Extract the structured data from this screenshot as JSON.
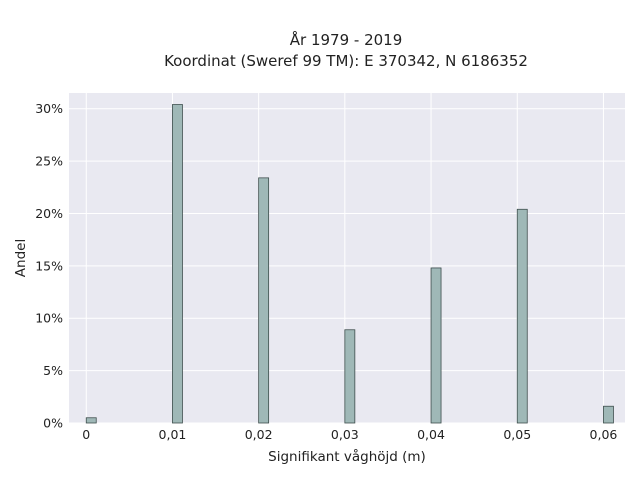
{
  "chart_data": {
    "type": "bar",
    "title_lines": [
      "År 1979 - 2019",
      "Koordinat (Sweref 99 TM): E 370342, N 6186352"
    ],
    "xlabel": "Signifikant våghöjd (m)",
    "ylabel": "Andel",
    "categories": [
      "0",
      "0,01",
      "0,02",
      "0,03",
      "0,04",
      "0,05",
      "0,06"
    ],
    "x": [
      0,
      0.01,
      0.02,
      0.03,
      0.04,
      0.05,
      0.06
    ],
    "values": [
      0.5,
      30.4,
      23.4,
      8.9,
      14.8,
      20.4,
      1.6
    ],
    "x_ticks": [
      0,
      0.01,
      0.02,
      0.03,
      0.04,
      0.05,
      0.06
    ],
    "x_tick_labels": [
      "0",
      "0,01",
      "0,02",
      "0,03",
      "0,04",
      "0,05",
      "0,06"
    ],
    "y_ticks": [
      0,
      5,
      10,
      15,
      20,
      25,
      30
    ],
    "y_tick_labels": [
      "0%",
      "5%",
      "10%",
      "15%",
      "20%",
      "25%",
      "30%"
    ],
    "xlim": [
      -0.002,
      0.0625
    ],
    "ylim": [
      0,
      31.5
    ],
    "grid": true,
    "colors": {
      "plot_background": "#e9e9f1",
      "grid": "#ffffff",
      "bar_fill": "#9fb8b7",
      "bar_edge": "#3e4e4d"
    }
  }
}
